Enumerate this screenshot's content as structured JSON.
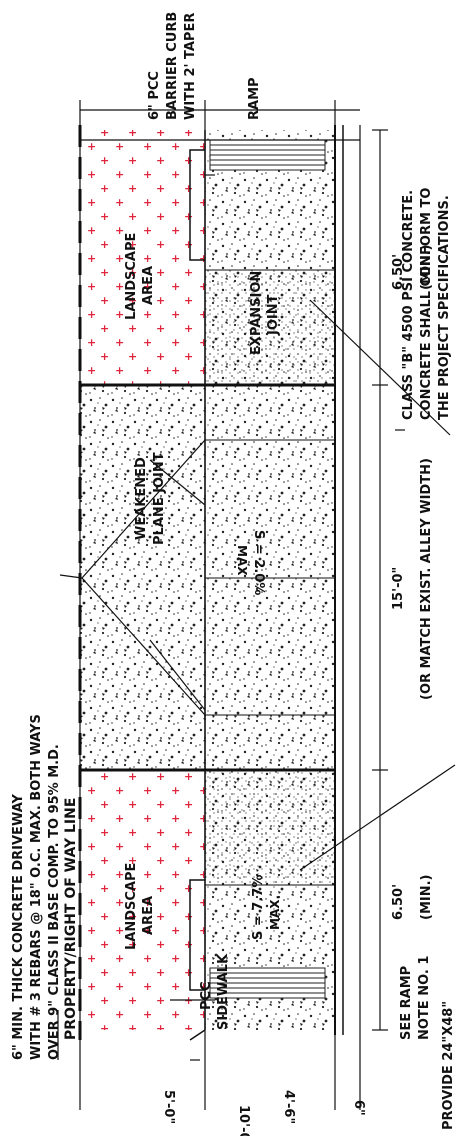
{
  "labels": {
    "top_note": [
      "6\" MIN. THICK CONCRETE DRIVEWAY",
      "WITH # 3 REBARS @ 18\" O.C. MAX. BOTH WAYS",
      "OVER 9\" CLASS II BASE COMP. TO 95% M.D."
    ],
    "barrier_curb": [
      "6\" PCC",
      "BARRIER CURB",
      "WITH 2' TAPER"
    ],
    "ramp_top": "RAMP",
    "property_line": "PROPERTY/RIGHT OF WAY LINE",
    "landscape_area": [
      "LANDSCAPE",
      "AREA"
    ],
    "weakened_plane": [
      "WEAKENED",
      "PLANE JOINT"
    ],
    "expansion_joint": [
      "EXPANSION",
      "JOINT"
    ],
    "pcc_sidewalk": [
      "PCC",
      "SIDEWALK"
    ],
    "slope_ramp": [
      "S = 7.7%",
      "MAX."
    ],
    "slope_driveway": [
      "S = 2.0%",
      "MAX"
    ],
    "dim_5": "5'-0\"",
    "dim_46": "4'-6\"",
    "dim_6": "6\"",
    "dim_10": "10'-0\"",
    "dim_650": "6.50'",
    "dim_min": "(MIN.)",
    "dim_15": "15'-0\"",
    "dim_match": "(OR MATCH EXIST. ALLEY WIDTH)",
    "see_ramp": [
      "SEE RAMP",
      "NOTE NO. 1"
    ],
    "provide": "PROVIDE 24\"X48\"",
    "class_b": [
      "CLASS \"B\" 4500 PSI CONCRETE.",
      "CONCRETE SHALL CONFORM TO",
      "THE PROJECT SPECIFICATIONS."
    ]
  }
}
